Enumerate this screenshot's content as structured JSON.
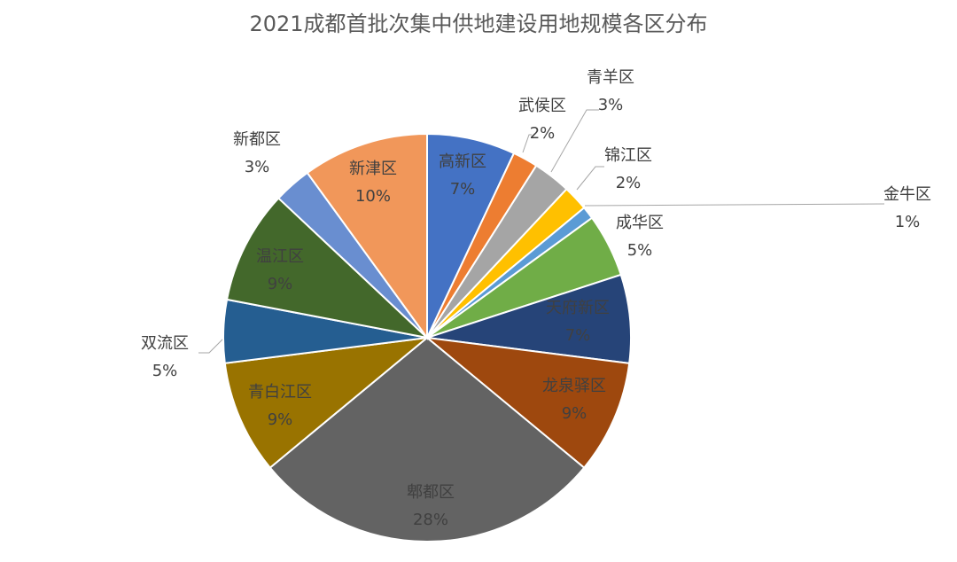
{
  "chart_data": {
    "type": "pie",
    "title": "2021成都首批次集中供地建设用地规模各区分布",
    "categories": [
      "高新区",
      "武侯区",
      "青羊区",
      "锦江区",
      "金牛区",
      "成华区",
      "天府新区",
      "龙泉驿区",
      "郫都区",
      "青白江区",
      "双流区",
      "温江区",
      "新都区",
      "新津区"
    ],
    "values": [
      7,
      2,
      3,
      2,
      1,
      5,
      7,
      9,
      28,
      9,
      5,
      9,
      3,
      10
    ],
    "value_labels": [
      "7%",
      "2%",
      "3%",
      "2%",
      "1%",
      "5%",
      "7%",
      "9%",
      "28%",
      "9%",
      "5%",
      "9%",
      "3%",
      "10%"
    ],
    "colors": [
      "#4472c4",
      "#ed7d31",
      "#a5a5a5",
      "#ffc000",
      "#5b9bd5",
      "#70ad47",
      "#264478",
      "#9e480e",
      "#636363",
      "#997300",
      "#255e91",
      "#43682b",
      "#698ed0",
      "#f1975a"
    ]
  }
}
